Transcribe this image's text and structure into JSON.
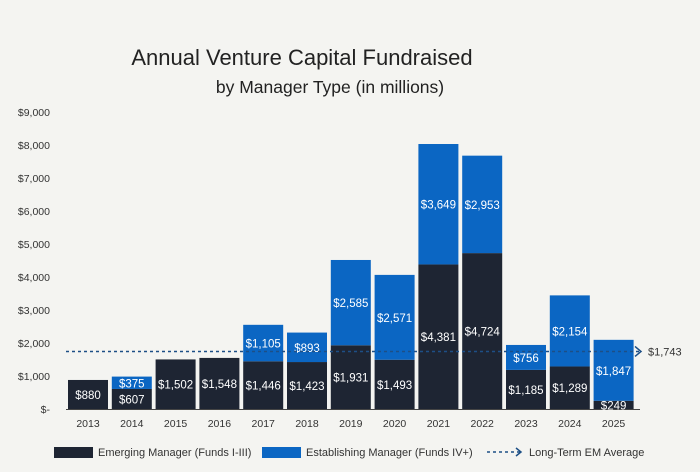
{
  "chart_data": {
    "type": "bar",
    "stacked": true,
    "title": "Annual Venture Capital Fundraised",
    "subtitle": "by Manager Type (in millions)",
    "categories": [
      "2013",
      "2014",
      "2015",
      "2016",
      "2017",
      "2018",
      "2019",
      "2020",
      "2021",
      "2022",
      "2023",
      "2024",
      "2025"
    ],
    "series": [
      {
        "name": "Emerging Manager (Funds I-III)",
        "color": "#1e2533",
        "values": [
          880,
          607,
          1502,
          1548,
          1446,
          1423,
          1931,
          1493,
          4381,
          4724,
          1185,
          1289,
          249
        ]
      },
      {
        "name": "Establishing Manager (Funds IV+)",
        "color": "#0b66c3",
        "values": [
          null,
          375,
          null,
          null,
          1105,
          893,
          2585,
          2571,
          3649,
          2953,
          756,
          2154,
          1847
        ]
      }
    ],
    "reference_line": {
      "name": "Long-Term EM Average",
      "value": 1743,
      "label": "$1,743",
      "color": "#1d4f86",
      "style": "dashed"
    },
    "ylim": [
      0,
      9000
    ],
    "yticks": [
      0,
      1000,
      2000,
      3000,
      4000,
      5000,
      6000,
      7000,
      8000,
      9000
    ],
    "ytick_labels": [
      "$-",
      "$1,000",
      "$2,000",
      "$3,000",
      "$4,000",
      "$5,000",
      "$6,000",
      "$7,000",
      "$8,000",
      "$9,000"
    ],
    "grid": false,
    "legend": "bottom"
  }
}
